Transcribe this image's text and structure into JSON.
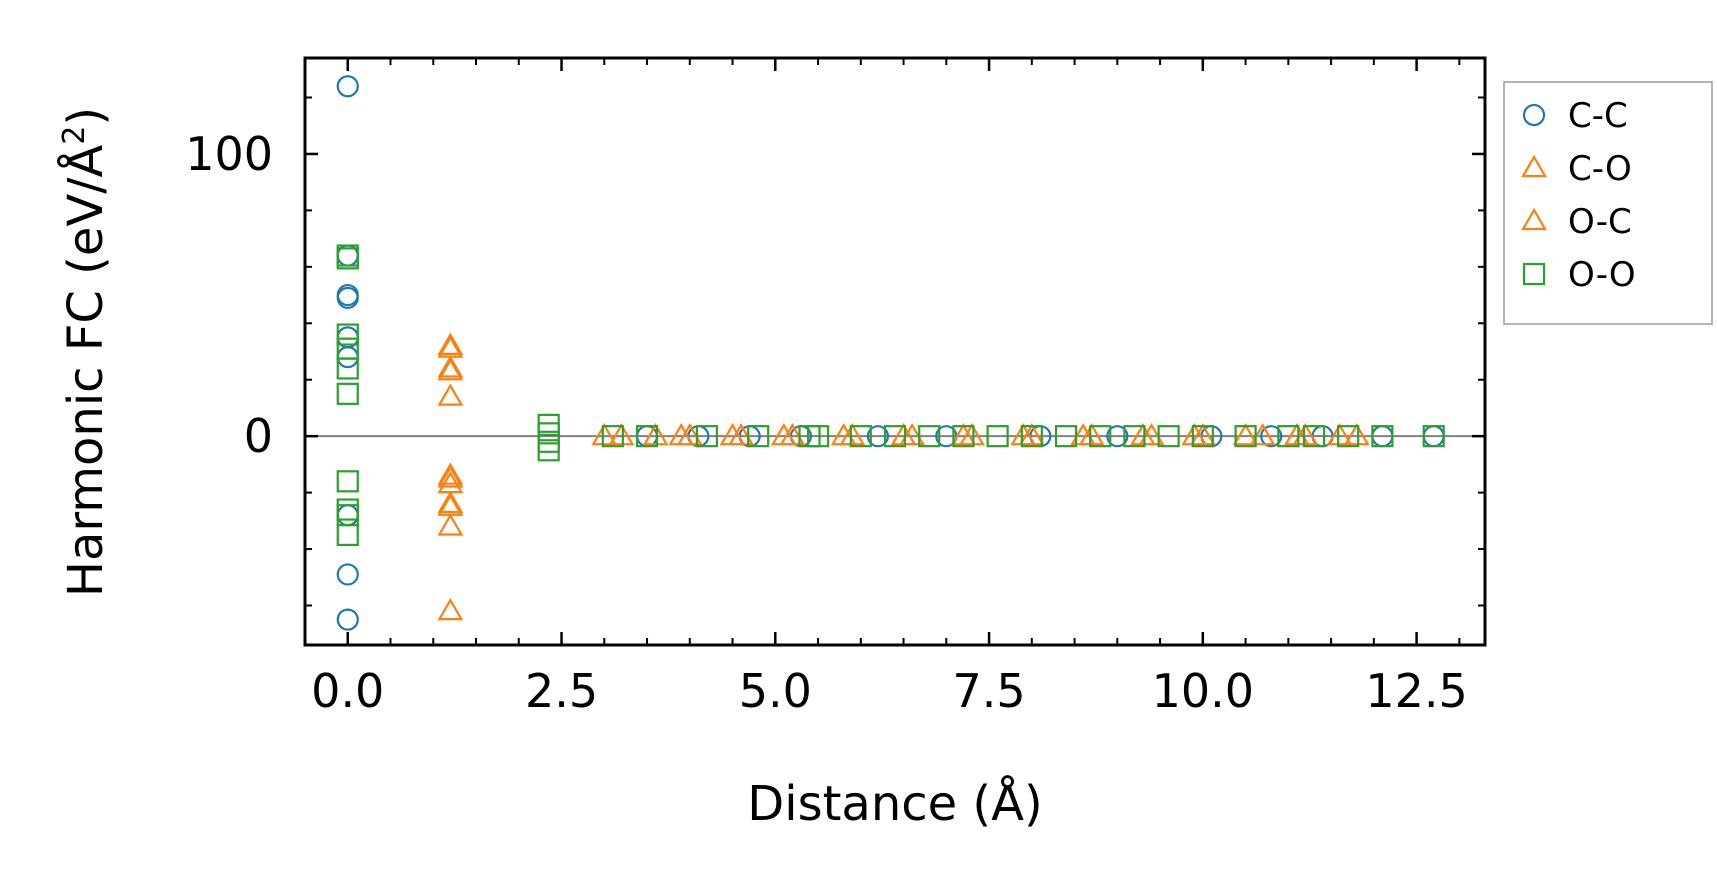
{
  "chart_data": {
    "type": "scatter",
    "title": "",
    "xlabel": "Distance (Å)",
    "ylabel_main": "Harmonic FC (eV/Å",
    "ylabel_sup": "2",
    "ylabel_end": ")",
    "xlim": [
      -0.5,
      13.3
    ],
    "ylim": [
      -74,
      134
    ],
    "x_ticks": [
      0.0,
      2.5,
      5.0,
      7.5,
      10.0,
      12.5
    ],
    "x_tick_labels": [
      "0.0",
      "2.5",
      "5.0",
      "7.5",
      "10.0",
      "12.5"
    ],
    "y_ticks": [
      0,
      100
    ],
    "y_tick_labels": [
      "0",
      "100"
    ],
    "legend_position": "outside-top-right",
    "series": [
      {
        "name": "C-C",
        "marker": "circle",
        "color": "#1f77b4",
        "x": [
          0,
          0,
          0,
          0,
          0,
          0,
          0,
          0,
          0,
          3.5,
          4.1,
          4.7,
          5.3,
          6.2,
          7.0,
          8.1,
          9.0,
          10.1,
          10.8,
          11.4,
          12.1,
          12.7
        ],
        "y": [
          124,
          64,
          50,
          49,
          35,
          28,
          -28,
          -49,
          -65,
          0,
          0,
          0,
          0,
          0,
          0,
          0,
          0,
          0,
          0,
          0,
          0,
          0
        ]
      },
      {
        "name": "C-O",
        "marker": "triangle",
        "color": "#ff7f0e",
        "x": [
          1.2,
          1.2,
          1.2,
          1.2,
          1.2,
          1.2,
          1.2,
          1.2,
          3.0,
          3.6,
          4.0,
          4.6,
          5.2,
          5.9,
          6.6,
          7.3,
          8.0,
          8.7,
          9.4,
          10.0,
          10.7,
          11.1,
          11.8
        ],
        "y": [
          32,
          24,
          14,
          -14,
          -17,
          -24,
          -32,
          -62,
          0,
          0,
          0,
          0,
          0,
          0,
          0,
          0,
          0,
          0,
          0,
          0,
          0,
          0,
          0
        ]
      },
      {
        "name": "O-C",
        "marker": "triangle",
        "color": "#ff7f0e",
        "x": [
          1.2,
          1.2,
          1.2,
          1.2,
          3.2,
          3.9,
          4.5,
          5.1,
          5.8,
          6.5,
          7.2,
          7.9,
          8.6,
          9.3,
          9.9,
          10.5,
          11.2,
          11.6
        ],
        "y": [
          31,
          23,
          -15,
          -25,
          0,
          0,
          0,
          0,
          0,
          0,
          0,
          0,
          0,
          0,
          0,
          0,
          0,
          0
        ]
      },
      {
        "name": "O-O",
        "marker": "square",
        "color": "#2ca02c",
        "x": [
          0,
          0,
          0,
          0,
          0,
          0,
          0,
          0,
          0,
          0,
          2.35,
          2.35,
          2.35,
          2.35,
          3.1,
          3.5,
          4.2,
          4.8,
          5.4,
          5.5,
          6.0,
          6.4,
          6.8,
          7.2,
          7.6,
          8.0,
          8.4,
          8.8,
          9.2,
          9.6,
          10.0,
          10.5,
          11.0,
          11.3,
          11.7,
          12.1,
          12.7
        ],
        "y": [
          64,
          63,
          36,
          31,
          24,
          15,
          -16,
          -26,
          -28,
          -35,
          4,
          1,
          -2,
          -5,
          0,
          0,
          0,
          0,
          0,
          0,
          0,
          0,
          0,
          0,
          0,
          0,
          0,
          0,
          0,
          0,
          0,
          0,
          0,
          0,
          0,
          0,
          0
        ]
      }
    ]
  }
}
